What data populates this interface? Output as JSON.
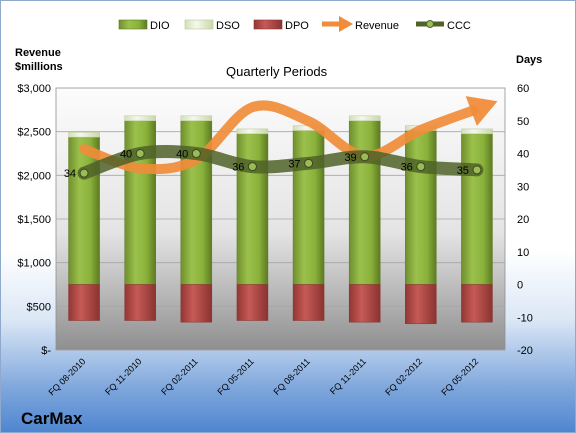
{
  "brand": "CarMax",
  "chart_data": {
    "type": "bar",
    "subtype": "stacked-bar-with-lines",
    "title": "Quarterly Periods",
    "left_axis": {
      "title_line1": "Revenue",
      "title_line2": "$millions",
      "ticks": [
        "$-",
        "$500",
        "$1,000",
        "$1,500",
        "$2,000",
        "$2,500",
        "$3,000"
      ],
      "range": [
        0,
        3000
      ]
    },
    "right_axis": {
      "title": "Days",
      "ticks": [
        "-20",
        "-10",
        "0",
        "10",
        "20",
        "30",
        "40",
        "50",
        "60"
      ],
      "range": [
        -20,
        60
      ]
    },
    "categories": [
      "FQ 08-2010",
      "FQ 11-2010",
      "FQ 02-2011",
      "FQ 05-2011",
      "FQ 08-2011",
      "FQ 11-2011",
      "FQ 02-2012",
      "FQ 05-2012"
    ],
    "legend": [
      "DIO",
      "DSO",
      "DPO",
      "Revenue",
      "CCC"
    ],
    "series": [
      {
        "name": "DIO",
        "axis": "right",
        "type": "bar",
        "color": "#8db23f",
        "values": [
          45,
          50,
          50,
          46,
          47,
          50,
          47,
          46
        ]
      },
      {
        "name": "DSO",
        "axis": "right",
        "type": "bar",
        "color": "#eaf1dd",
        "values": [
          1.5,
          1.5,
          1.5,
          1.5,
          1.5,
          1.5,
          1.5,
          1.5
        ]
      },
      {
        "name": "DPO",
        "axis": "right",
        "type": "bar",
        "color": "#c0504d",
        "values": [
          -11,
          -11,
          -11.5,
          -11,
          -11,
          -11.5,
          -12,
          -11.5
        ]
      },
      {
        "name": "Revenue",
        "axis": "left",
        "type": "line",
        "color": "#f08c3a",
        "values": [
          2300,
          2080,
          2180,
          2780,
          2620,
          2220,
          2520,
          2760
        ]
      },
      {
        "name": "CCC",
        "axis": "right",
        "type": "line",
        "color": "#4f6228",
        "values": [
          34,
          40,
          40,
          36,
          37,
          39,
          36,
          35
        ],
        "labels": [
          "34",
          "40",
          "40",
          "36",
          "37",
          "39",
          "36",
          "35"
        ]
      }
    ],
    "grid": true,
    "legend_position": "top"
  }
}
